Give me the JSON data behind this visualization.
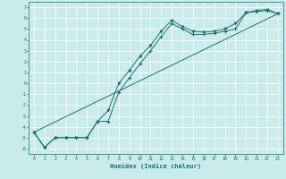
{
  "xlabel": "Humidex (Indice chaleur)",
  "ylabel": "",
  "bg_color": "#c8ecec",
  "grid_color": "#ffffff",
  "line_color": "#1a7070",
  "xlim": [
    -0.5,
    23.5
  ],
  "ylim": [
    -6.5,
    7.5
  ],
  "xticks": [
    0,
    1,
    2,
    3,
    4,
    5,
    6,
    7,
    8,
    9,
    10,
    11,
    12,
    13,
    14,
    15,
    16,
    17,
    18,
    19,
    20,
    21,
    22,
    23
  ],
  "yticks": [
    -6,
    -5,
    -4,
    -3,
    -2,
    -1,
    0,
    1,
    2,
    3,
    4,
    5,
    6,
    7
  ],
  "series1_x": [
    0,
    1,
    2,
    3,
    4,
    5,
    6,
    7,
    8,
    9,
    10,
    11,
    12,
    13,
    14,
    15,
    16,
    17,
    18,
    19,
    20,
    21,
    22,
    23
  ],
  "series1_y": [
    -4.5,
    -5.9,
    -5.0,
    -5.0,
    -5.0,
    -5.0,
    -3.5,
    -3.5,
    -0.8,
    0.5,
    1.8,
    3.0,
    4.3,
    5.5,
    5.0,
    4.5,
    4.5,
    4.6,
    4.8,
    5.0,
    6.5,
    6.6,
    6.7,
    6.4
  ],
  "series2_x": [
    0,
    1,
    2,
    3,
    4,
    5,
    6,
    7,
    8,
    9,
    10,
    11,
    12,
    13,
    14,
    15,
    16,
    17,
    18,
    19,
    20,
    21,
    22,
    23
  ],
  "series2_y": [
    -4.5,
    -5.9,
    -5.0,
    -5.0,
    -5.0,
    -5.0,
    -3.5,
    -2.5,
    0.0,
    1.2,
    2.5,
    3.5,
    4.8,
    5.8,
    5.2,
    4.8,
    4.7,
    4.8,
    5.0,
    5.5,
    6.5,
    6.7,
    6.8,
    6.4
  ],
  "series3_x": [
    0,
    23
  ],
  "series3_y": [
    -4.5,
    6.4
  ]
}
